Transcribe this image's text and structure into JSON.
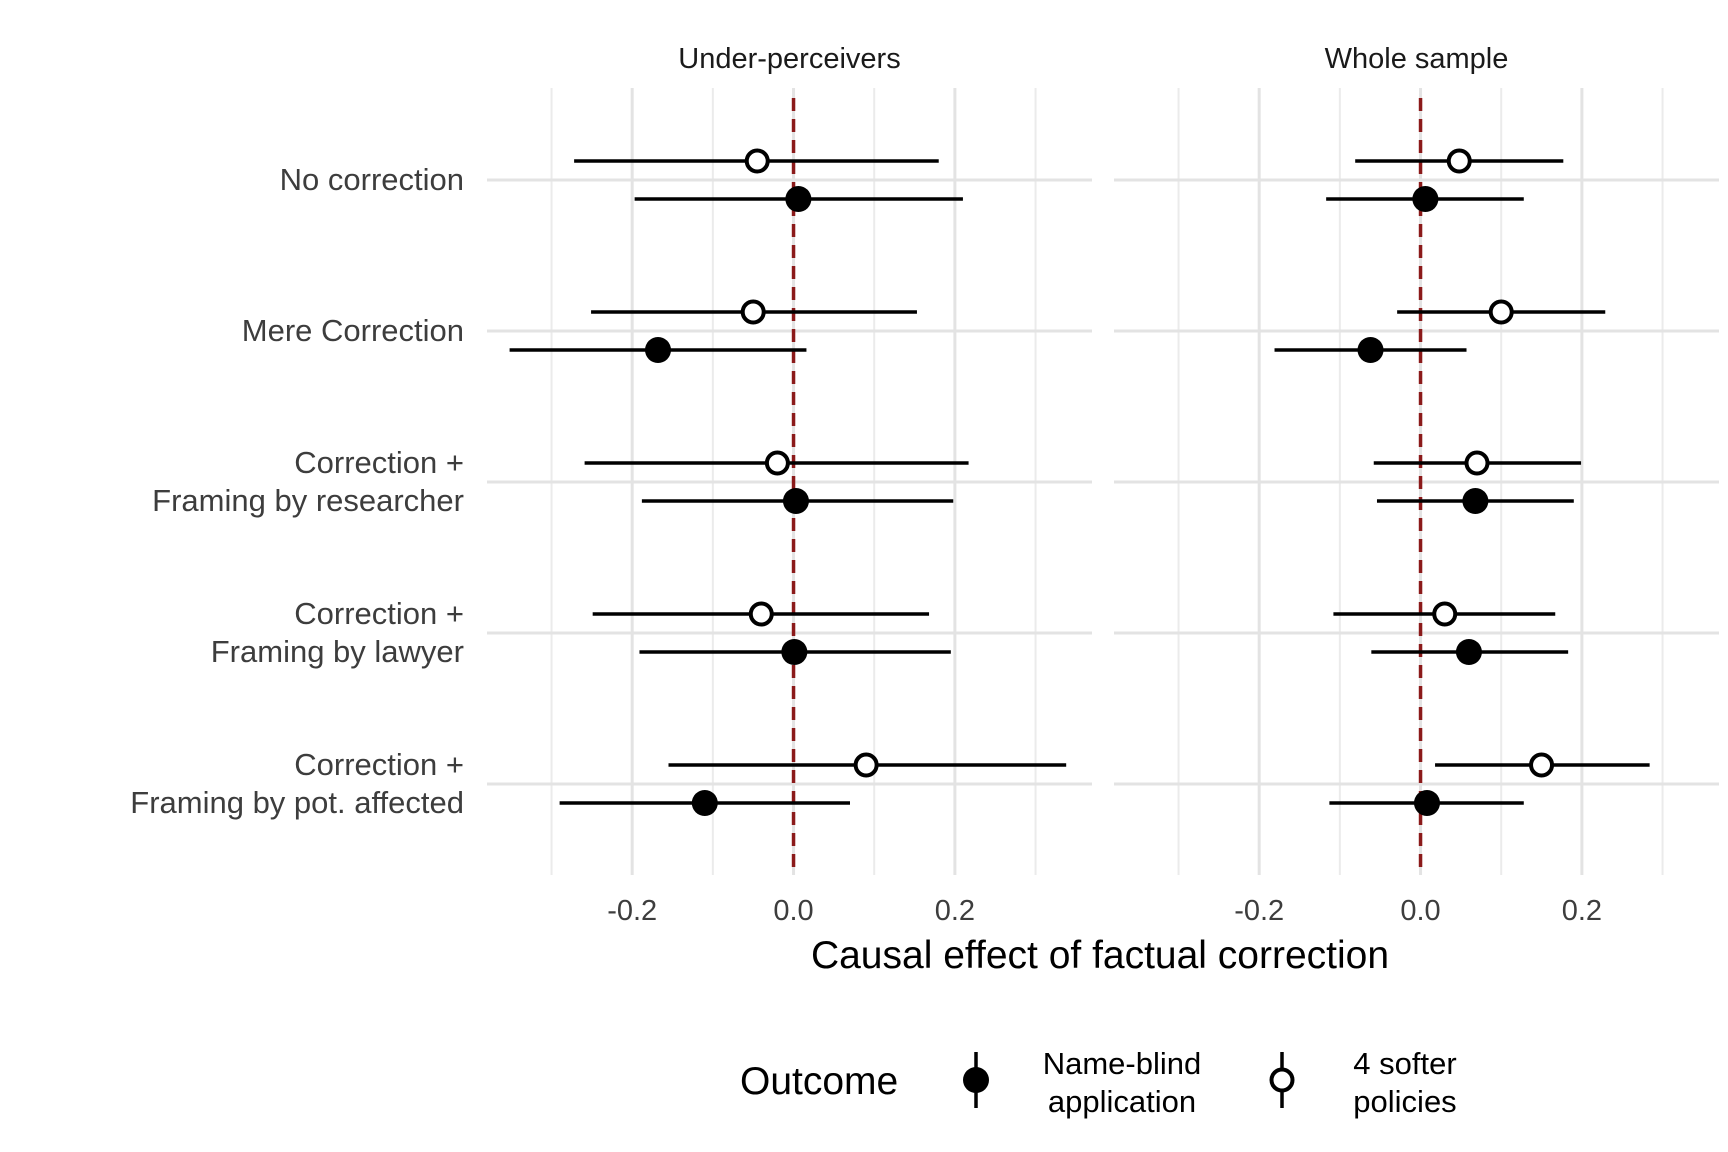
{
  "chart_data": {
    "type": "scatter",
    "subtype": "coefficient-plot with confidence intervals",
    "xlabel": "Causal effect of factual correction",
    "x_ticks": [
      "-0.2",
      "0.0",
      "0.2"
    ],
    "x_tick_values": [
      -0.2,
      0.0,
      0.2
    ],
    "xlim": [
      -0.38,
      0.37
    ],
    "grid": true,
    "reference_line": {
      "x": 0.0,
      "style": "dashed",
      "color": "#8b1a1a"
    },
    "categories": [
      "No correction",
      "Mere Correction",
      "Correction + \nFraming by researcher",
      "Correction + \nFraming by lawyer",
      "Correction + \nFraming by pot. affected"
    ],
    "category_lines": [
      [
        "No correction"
      ],
      [
        "Mere Correction"
      ],
      [
        "Correction + ",
        "Framing by researcher"
      ],
      [
        "Correction + ",
        "Framing by lawyer"
      ],
      [
        "Correction + ",
        "Framing by pot. affected"
      ]
    ],
    "legend": {
      "title": "Outcome",
      "position": "bottom",
      "entries": [
        {
          "label_lines": [
            "Name-blind",
            "application"
          ],
          "marker": "filled-circle"
        },
        {
          "label_lines": [
            "4 softer",
            "policies"
          ],
          "marker": "open-circle"
        }
      ]
    },
    "panels": [
      {
        "title": "Under-perceivers",
        "series": [
          {
            "name": "Name-blind application",
            "marker": "filled",
            "estimate": [
              0.006,
              -0.168,
              0.003,
              0.001,
              -0.11
            ],
            "ci_low": [
              -0.197,
              -0.352,
              -0.188,
              -0.191,
              -0.29
            ],
            "ci_high": [
              0.21,
              0.016,
              0.198,
              0.195,
              0.07
            ]
          },
          {
            "name": "4 softer policies",
            "marker": "open",
            "estimate": [
              -0.045,
              -0.05,
              -0.02,
              -0.04,
              0.09
            ],
            "ci_low": [
              -0.272,
              -0.251,
              -0.259,
              -0.249,
              -0.155
            ],
            "ci_high": [
              0.18,
              0.153,
              0.217,
              0.168,
              0.338
            ]
          }
        ]
      },
      {
        "title": "Whole sample",
        "series": [
          {
            "name": "Name-blind application",
            "marker": "filled",
            "estimate": [
              0.006,
              -0.062,
              0.068,
              0.06,
              0.008
            ],
            "ci_low": [
              -0.117,
              -0.181,
              -0.054,
              -0.061,
              -0.113
            ],
            "ci_high": [
              0.128,
              0.057,
              0.19,
              0.183,
              0.128
            ]
          },
          {
            "name": "4 softer policies",
            "marker": "open",
            "estimate": [
              0.048,
              0.1,
              0.07,
              0.03,
              0.15
            ],
            "ci_low": [
              -0.081,
              -0.029,
              -0.058,
              -0.108,
              0.018
            ],
            "ci_high": [
              0.177,
              0.229,
              0.199,
              0.167,
              0.284
            ]
          }
        ]
      }
    ]
  }
}
